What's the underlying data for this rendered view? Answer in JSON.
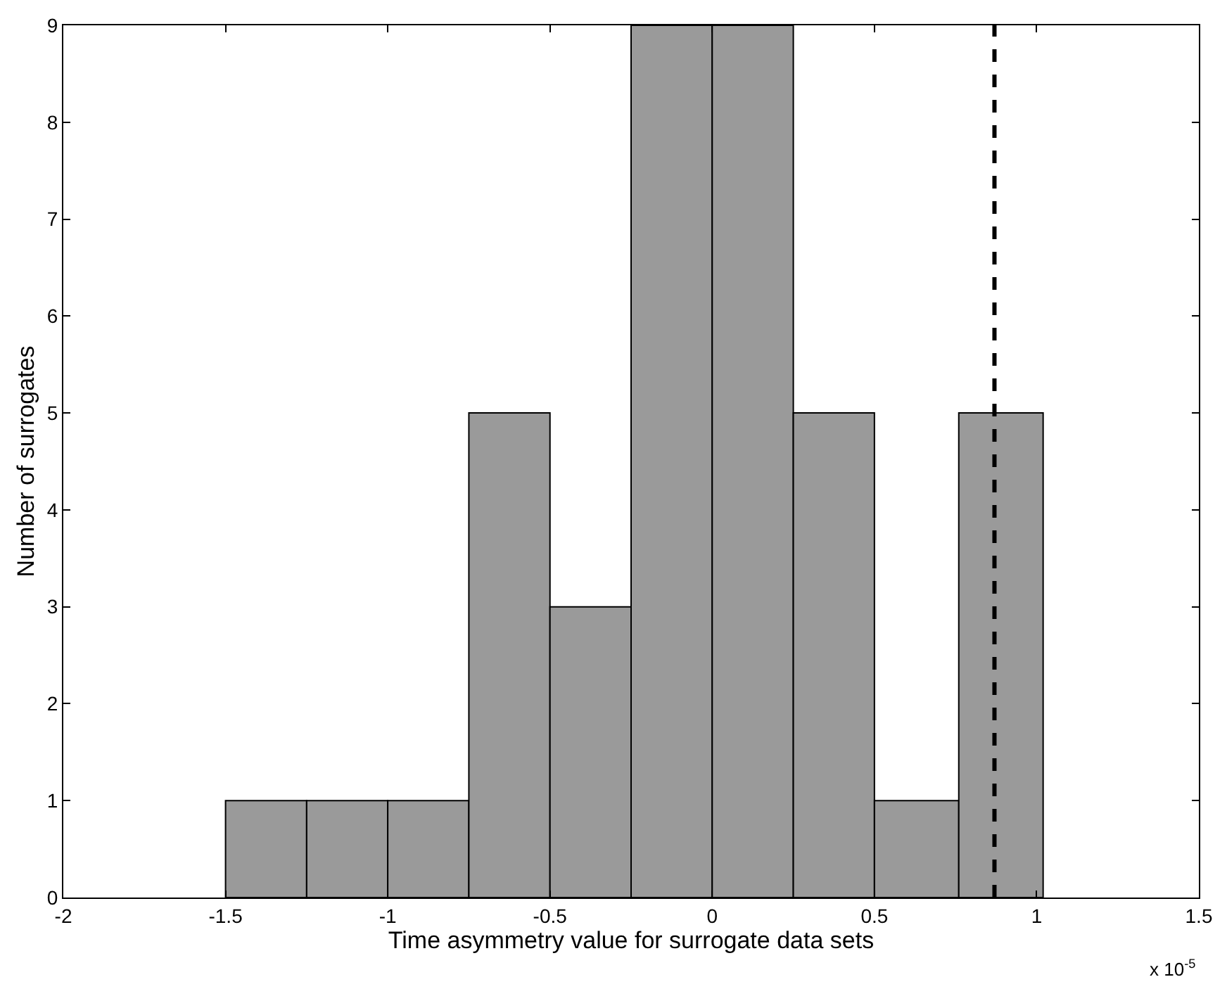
{
  "chart_data": {
    "type": "histogram",
    "xlabel": "Time asymmetry value for surrogate data sets",
    "ylabel": "Number of surrogates",
    "bins": [
      -1.5,
      -1.25,
      -1.0,
      -0.75,
      -0.5,
      -0.25,
      0,
      0.25,
      0.5,
      0.76,
      1.02
    ],
    "values": [
      1,
      1,
      1,
      5,
      3,
      9,
      9,
      5,
      1,
      5
    ],
    "color": "#9a9a9a",
    "xlim": [
      -2,
      1.5
    ],
    "xticks": [
      -2,
      -1.5,
      -1,
      -0.5,
      0,
      0.5,
      1,
      1.5
    ],
    "ylim": [
      0,
      9
    ],
    "yticks": [
      0,
      1,
      2,
      3,
      4,
      5,
      6,
      7,
      8,
      9
    ],
    "ref_lines": [
      {
        "axis": "x",
        "value": 0.87,
        "label": null,
        "color": "#000000",
        "line_style": "dashed"
      }
    ],
    "annotations": [
      "x 10$^{-5}$"
    ]
  }
}
